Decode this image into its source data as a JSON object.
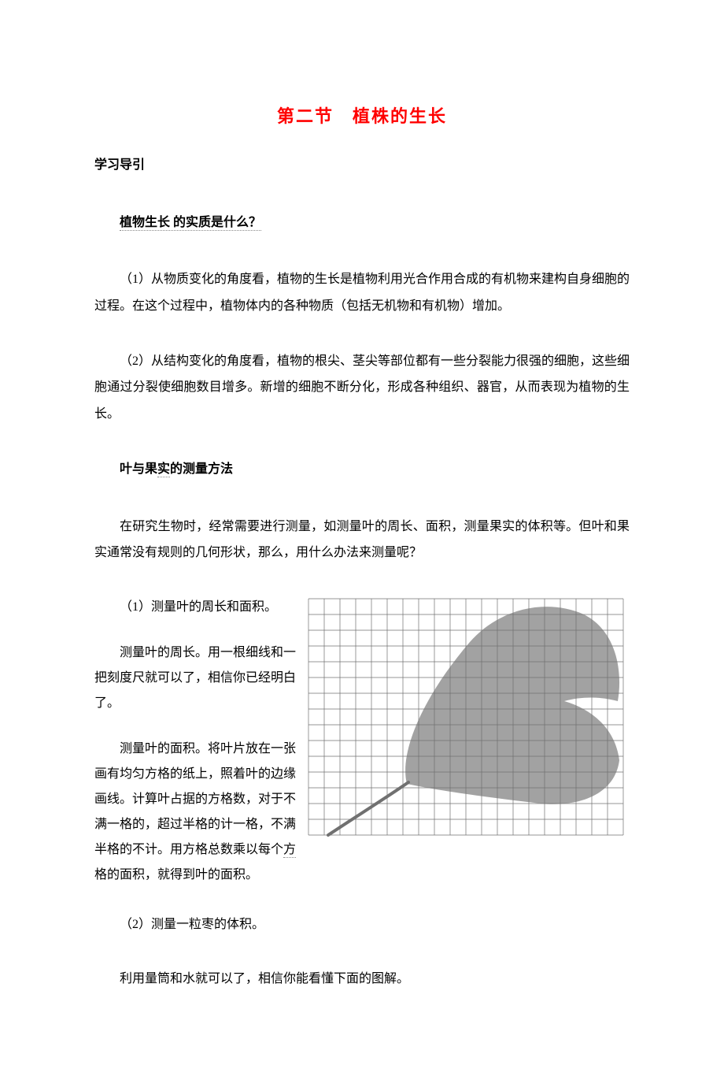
{
  "title": "第二节　植株的生长",
  "h_intro": "学习导引",
  "h_q1": "植物生长 的实质是什么？",
  "p1": "（1）从物质变化的角度看，植物的生长是植物利用光合作用合成的有机物来建构自身细胞的过程。在这个过程中，植物体内的各种物质（包括无机物和有机物）增加。",
  "p2": "（2）从结构变化的角度看，植物的根尖、茎尖等部位都有一些分裂能力很强的细胞，这些细胞通过分裂使细胞数目增多。新增的细胞不断分化，形成各种组织、器官，从而表现为植物的生长。",
  "h_q2_a": "叶与果",
  "h_q2_b": "实",
  "h_q2_c": "的测量方法",
  "p3": "在研究生物时，经常需要进行测量，如测量叶的周长、面积，测量果实的体积等。但叶和果实通常没有规则的几何形状，那么，用什么办法来测量呢？",
  "p4": "（1）测量叶的周长和面积。",
  "p5": "测量叶的周长。用一根细线和一把刻度尺就可以了，相信你已经明白了。",
  "p6_a": "测量叶的面积。将叶片放在一张画有均匀方格的纸上，照着叶的边缘画线。计算叶占据的方格数，对于不满一格的，超过半格的计一格，不满半格的不计。用方格总数乘以每个",
  "p6_b": "方",
  "p6_c": "格的面积，就得到叶的面积。",
  "p7": "（2）测量一粒枣的体积。",
  "p8": "利用量筒和水就可以了，相信你能看懂下面的图解。",
  "figure": {
    "type": "illustration",
    "grid_cols": 20,
    "grid_rows": 15,
    "cell": 20,
    "grid_color": "#707070",
    "background_color": "#ffffff",
    "leaf_color": "#888888",
    "stem_color": "#707070"
  },
  "colors": {
    "title": "#ff0000",
    "text": "#000000",
    "dotted": "#888888"
  }
}
